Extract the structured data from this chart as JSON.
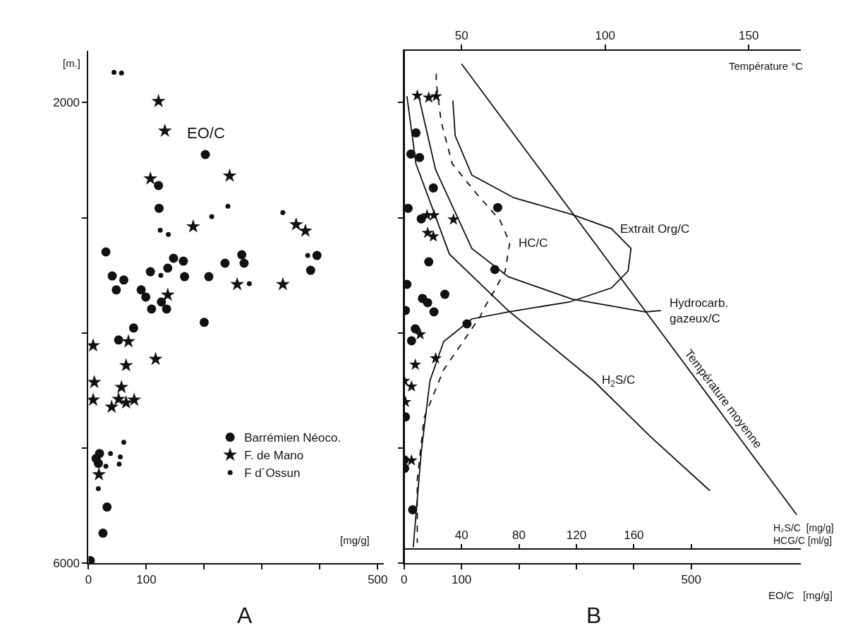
{
  "chart_data": [
    {
      "type": "scatter",
      "title": "A",
      "xlabel": "[mg/g]",
      "ylabel": "[m.]",
      "annotations": [
        "EO/C"
      ],
      "xlim": [
        0,
        510
      ],
      "xticks": [
        0,
        100,
        {
          "value": 200,
          "label": null
        },
        {
          "value": 300,
          "label": null
        },
        {
          "value": 400,
          "label": null
        },
        500
      ],
      "ylim": [
        6000,
        1550
      ],
      "yticks": [
        2000,
        {
          "value": 3000,
          "label": null
        },
        {
          "value": 4000,
          "label": null
        },
        {
          "value": 5000,
          "label": null
        },
        6000
      ],
      "legend": "bottom right",
      "grid": false,
      "series": [
        {
          "name": "Barrémien Néoco.",
          "color": "#111111",
          "marker": "circle",
          "x": [
            202,
            121,
            122,
            30,
            41,
            61,
            48,
            91,
            99,
            107,
            137,
            147,
            164,
            166,
            208,
            236,
            265,
            269,
            395,
            384,
            126,
            109,
            135,
            200,
            78,
            52,
            19,
            13,
            17,
            32,
            25,
            3
          ],
          "values": [
            2451,
            2720,
            2918,
            3297,
            3506,
            3541,
            3627,
            3627,
            3689,
            3469,
            3438,
            3352,
            3377,
            3512,
            3512,
            3395,
            3322,
            3395,
            3328,
            3457,
            3732,
            3793,
            3793,
            3909,
            3958,
            4062,
            5048,
            5091,
            5134,
            5513,
            5740,
            5978
          ]
        },
        {
          "name": "F. de Mano",
          "color": "#111111",
          "marker": "star",
          "x": [
            121,
            132,
            107,
            244,
            181,
            359,
            375,
            257,
            336,
            137,
            8,
            69,
            116,
            65,
            10,
            57,
            8,
            52,
            65,
            79,
            40,
            18
          ],
          "values": [
            1988,
            2245,
            2661,
            2636,
            3077,
            3059,
            3114,
            3579,
            3579,
            3671,
            4111,
            4075,
            4228,
            4283,
            4430,
            4472,
            4582,
            4576,
            4607,
            4582,
            4644,
            5231
          ]
        },
        {
          "name": "F d´Ossun",
          "color": "#111111",
          "marker": "circle",
          "x": [
            44,
            57,
            241,
            213,
            336,
            124,
            138,
            125,
            278,
            379,
            61,
            38,
            55,
            53,
            30,
            17
          ],
          "values": [
            1737,
            1743,
            2900,
            2991,
            2955,
            3108,
            3145,
            3500,
            3573,
            3328,
            4950,
            5048,
            5077,
            5140,
            5158,
            5354
          ]
        }
      ]
    },
    {
      "type": "line",
      "title": "B",
      "xlabel": "EO/C   [mg/g]",
      "x2label": "Température °C",
      "xlim": [
        0,
        690
      ],
      "xticks": [
        0,
        100,
        {
          "value": 200,
          "label": null
        },
        {
          "value": 300,
          "label": null
        },
        {
          "value": 400,
          "label": null
        },
        500
      ],
      "x2lim": [
        30,
        168
      ],
      "x2ticks": [
        50,
        100,
        150
      ],
      "ylim": [
        6000,
        1550
      ],
      "yticks": [
        {
          "value": 2000,
          "label": null
        },
        {
          "value": 3000,
          "label": null
        },
        {
          "value": 4000,
          "label": null
        },
        {
          "value": 5000,
          "label": null
        },
        {
          "value": 6000,
          "label": null
        }
      ],
      "tick_labels": "x",
      "grid": false,
      "annotations": [
        {
          "text": "Extrait Org/C",
          "x": 361,
          "y": 3095
        },
        {
          "text": "HC/C",
          "x": 184,
          "y": 3218
        },
        "Température moyenne"
      ],
      "series": [
        {
          "type": "scatter",
          "color": "#111111",
          "marker": "circle",
          "x": [
            20.7,
            12,
            27,
            51,
            7,
            163,
            30,
            43,
            158,
            5,
            71,
            32,
            41,
            2.4,
            52,
            109.5,
            19.5,
            13,
            2.4,
            0.5,
            1,
            15
          ],
          "values": [
            2263,
            2447,
            2477,
            2741,
            2918,
            2912,
            3010,
            3383,
            3450,
            3579,
            3665,
            3701,
            3738,
            3805,
            3818,
            3922,
            3965,
            4069,
            4730,
            5103,
            5176,
            5537
          ]
        },
        {
          "type": "scatter",
          "color": "#111111",
          "marker": "star",
          "x": [
            23,
            43,
            56,
            40,
            52,
            86,
            41,
            51,
            28,
            55,
            19.5,
            0.5,
            13,
            2.4,
            13
          ],
          "values": [
            1939,
            1957,
            1945,
            2979,
            2979,
            3016,
            3132,
            3163,
            4013,
            4222,
            4277,
            4417,
            4466,
            4601,
            5109
          ]
        },
        {
          "type": "line",
          "color": "#111111",
          "marker": "none",
          "line_style": "solid",
          "x": [
            85,
            89,
            118,
            191,
            293,
            361,
            395,
            390,
            361,
            288,
            181,
            118,
            69,
            45,
            30,
            16
          ],
          "values": [
            1982,
            2288,
            2630,
            2826,
            2973,
            3095,
            3267,
            3463,
            3610,
            3732,
            3818,
            3879,
            4075,
            4417,
            5029,
            5862
          ]
        },
        {
          "type": "line",
          "color": "#111111",
          "marker": "none",
          "line_style": "dashed",
          "x": [
            56,
            56,
            64.5,
            84,
            128,
            167,
            184,
            176,
            157,
            137,
            133,
            69,
            35,
            23,
            23
          ],
          "values": [
            1749,
            1823,
            2165,
            2532,
            2802,
            3022,
            3218,
            3463,
            3634,
            3806,
            3855,
            4320,
            4736,
            5274,
            5825
          ]
        },
        {
          "type": "line",
          "axis": "x2",
          "color": "#111111",
          "marker": "none",
          "line_style": "solid",
          "x": [
            50,
            166.7
          ],
          "values": [
            1663,
            5580
          ]
        }
      ]
    },
    {
      "type": "line",
      "xlabel": "H₂S/C  [mg/g]\nHCG/C [ml/g]",
      "xlim": [
        0,
        276
      ],
      "xticks": [
        40,
        80,
        120,
        160,
        {
          "value": 200,
          "label": null
        }
      ],
      "ylim": [
        6000,
        1550
      ],
      "tick_labels": "x",
      "grid": false,
      "annotations": [
        {
          "text": "Hydrocarb.\ngazeux/C",
          "x": 179,
          "y": 3806
        },
        {
          "text": "H$_{2}$S/C",
          "x": 132,
          "y": 4417
        }
      ],
      "series": [
        {
          "type": "line",
          "color": "#111111",
          "marker": "none",
          "line_style": "solid",
          "x": [
            10.2,
            21.9,
            47.2,
            72.5,
            117,
            168,
            179
          ],
          "values": [
            1945,
            2581,
            3267,
            3512,
            3707,
            3818,
            3806
          ]
        },
        {
          "type": "line",
          "color": "#111111",
          "marker": "none",
          "line_style": "solid",
          "x": [
            2.0,
            8.3,
            31.6,
            72.5,
            132,
            172,
            213
          ],
          "values": [
            1945,
            2532,
            3316,
            3806,
            4417,
            4907,
            5372
          ]
        }
      ]
    }
  ]
}
